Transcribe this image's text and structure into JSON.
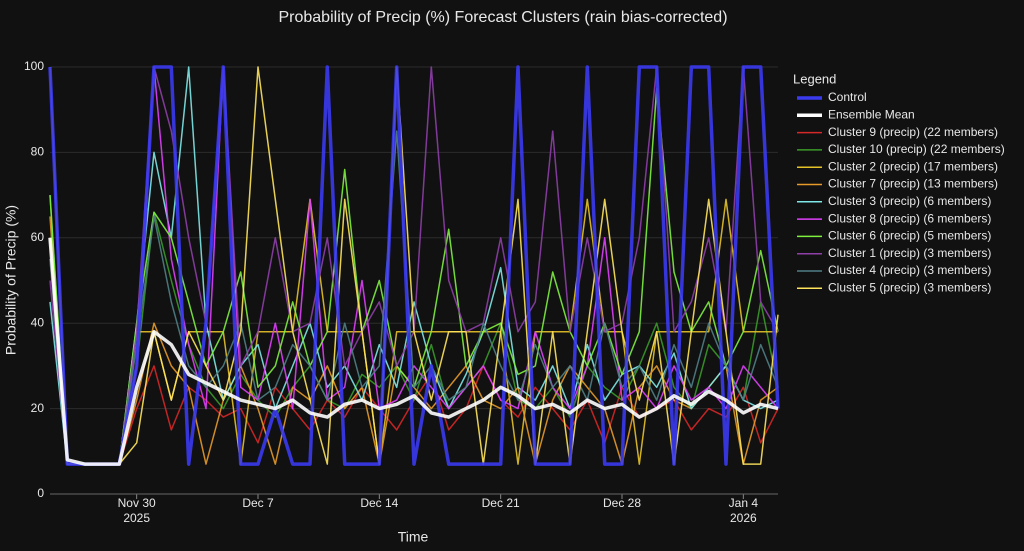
{
  "chart_data": {
    "type": "line",
    "title": "Probability of Precip (%) Forecast Clusters (rain bias-corrected)",
    "xlabel": "Time",
    "ylabel": "Probability of Precip (%)",
    "legend_title": "Legend",
    "legend": "right",
    "grid": true,
    "ylim": [
      0,
      100
    ],
    "yticks": [
      0,
      20,
      40,
      60,
      80,
      100
    ],
    "xlim": [
      "2025-11-25",
      "2026-01-06"
    ],
    "xticks": [
      {
        "value": "2025-11-30",
        "label": [
          "Nov 30",
          "2025"
        ]
      },
      {
        "value": "2025-12-07",
        "label": "Dec 7"
      },
      {
        "value": "2025-12-14",
        "label": "Dec 14"
      },
      {
        "value": "2025-12-21",
        "label": "Dec 21"
      },
      {
        "value": "2025-12-28",
        "label": "Dec 28"
      },
      {
        "value": "2026-01-04",
        "label": [
          "Jan 4",
          "2026"
        ]
      }
    ],
    "x": [
      "2025-11-25",
      "2025-11-26",
      "2025-11-27",
      "2025-11-28",
      "2025-11-29",
      "2025-11-30",
      "2025-12-01",
      "2025-12-02",
      "2025-12-03",
      "2025-12-04",
      "2025-12-05",
      "2025-12-06",
      "2025-12-07",
      "2025-12-08",
      "2025-12-09",
      "2025-12-10",
      "2025-12-11",
      "2025-12-12",
      "2025-12-13",
      "2025-12-14",
      "2025-12-15",
      "2025-12-16",
      "2025-12-17",
      "2025-12-18",
      "2025-12-19",
      "2025-12-20",
      "2025-12-21",
      "2025-12-22",
      "2025-12-23",
      "2025-12-24",
      "2025-12-25",
      "2025-12-26",
      "2025-12-27",
      "2025-12-28",
      "2025-12-29",
      "2025-12-30",
      "2025-12-31",
      "2026-01-01",
      "2026-01-02",
      "2026-01-03",
      "2026-01-04",
      "2026-01-05",
      "2026-01-06"
    ],
    "series": [
      {
        "name": "Control",
        "color": "#3a3af0",
        "width": 3.5,
        "values": [
          100,
          7,
          7,
          7,
          7,
          30,
          100,
          100,
          7,
          40,
          100,
          7,
          7,
          20,
          7,
          7,
          100,
          7,
          7,
          7,
          100,
          7,
          30,
          7,
          7,
          7,
          7,
          100,
          7,
          7,
          7,
          100,
          7,
          7,
          100,
          100,
          7,
          100,
          100,
          7,
          100,
          100,
          20
        ]
      },
      {
        "name": "Ensemble Mean",
        "color": "#ffffff",
        "width": 3.5,
        "values": [
          60,
          8,
          7,
          7,
          7,
          25,
          38,
          35,
          28,
          26,
          24,
          22,
          21,
          20,
          22,
          19,
          18,
          21,
          22,
          20,
          21,
          23,
          19,
          18,
          20,
          22,
          25,
          23,
          20,
          21,
          19,
          22,
          20,
          21,
          18,
          20,
          23,
          21,
          24,
          22,
          19,
          21,
          20
        ]
      },
      {
        "name": "Cluster 9 (precip) (22 members)",
        "color": "#d62728",
        "width": 1.5,
        "values": [
          55,
          7,
          7,
          7,
          7,
          20,
          30,
          15,
          25,
          22,
          18,
          20,
          12,
          25,
          20,
          15,
          22,
          18,
          25,
          20,
          15,
          22,
          28,
          15,
          20,
          30,
          22,
          18,
          25,
          20,
          15,
          22,
          12,
          25,
          18,
          20,
          22,
          15,
          20,
          18,
          25,
          12,
          20
        ]
      },
      {
        "name": "Cluster 10 (precip) (22 members)",
        "color": "#3a9a2a",
        "width": 1.5,
        "values": [
          70,
          7,
          7,
          7,
          7,
          30,
          66,
          50,
          35,
          25,
          20,
          28,
          22,
          18,
          25,
          30,
          22,
          20,
          28,
          25,
          30,
          22,
          35,
          20,
          25,
          30,
          40,
          22,
          20,
          25,
          18,
          30,
          25,
          22,
          30,
          40,
          25,
          20,
          35,
          30,
          22,
          45,
          25
        ]
      },
      {
        "name": "Cluster 2 (precip) (17 members)",
        "color": "#e6c229",
        "width": 1.5,
        "values": [
          100,
          7,
          7,
          7,
          7,
          38,
          38,
          22,
          38,
          38,
          38,
          7,
          38,
          38,
          38,
          69,
          38,
          38,
          38,
          7,
          38,
          38,
          38,
          38,
          38,
          38,
          38,
          7,
          38,
          38,
          38,
          69,
          38,
          38,
          7,
          38,
          38,
          38,
          38,
          69,
          38,
          38,
          38
        ]
      },
      {
        "name": "Cluster 7 (precip) (13 members)",
        "color": "#e59a2a",
        "width": 1.5,
        "values": [
          65,
          7,
          7,
          7,
          7,
          22,
          40,
          30,
          25,
          7,
          22,
          30,
          20,
          7,
          25,
          22,
          30,
          20,
          25,
          7,
          30,
          25,
          20,
          25,
          30,
          22,
          20,
          25,
          7,
          22,
          30,
          25,
          20,
          7,
          25,
          30,
          22,
          20,
          25,
          30,
          7,
          22,
          25
        ]
      },
      {
        "name": "Cluster 3 (precip) (6 members)",
        "color": "#7fe8e8",
        "width": 1.5,
        "values": [
          45,
          7,
          7,
          7,
          7,
          40,
          80,
          60,
          100,
          40,
          22,
          30,
          35,
          20,
          30,
          40,
          25,
          30,
          22,
          35,
          25,
          45,
          30,
          20,
          28,
          38,
          53,
          25,
          22,
          30,
          20,
          35,
          22,
          28,
          30,
          25,
          33,
          20,
          25,
          30,
          22,
          20,
          22
        ]
      },
      {
        "name": "Cluster 8 (precip) (6 members)",
        "color": "#e040fb",
        "width": 1.5,
        "values": [
          60,
          7,
          7,
          7,
          7,
          30,
          100,
          55,
          35,
          20,
          100,
          25,
          22,
          40,
          20,
          69,
          22,
          25,
          50,
          20,
          22,
          30,
          25,
          20,
          25,
          30,
          22,
          20,
          38,
          25,
          20,
          30,
          60,
          22,
          25,
          20,
          30,
          22,
          25,
          20,
          30,
          25,
          20
        ]
      },
      {
        "name": "Cluster 6 (precip) (5 members)",
        "color": "#80f040",
        "width": 1.5,
        "values": [
          70,
          7,
          7,
          7,
          7,
          40,
          66,
          60,
          45,
          30,
          38,
          52,
          25,
          30,
          45,
          30,
          38,
          76,
          38,
          50,
          30,
          25,
          38,
          62,
          30,
          38,
          40,
          28,
          30,
          52,
          38,
          30,
          40,
          28,
          38,
          95,
          52,
          38,
          45,
          30,
          38,
          57,
          38
        ]
      },
      {
        "name": "Cluster 1 (precip) (3 members)",
        "color": "#8e3fa8",
        "width": 1.5,
        "values": [
          50,
          7,
          7,
          7,
          7,
          38,
          100,
          85,
          60,
          40,
          100,
          30,
          38,
          60,
          38,
          40,
          60,
          30,
          38,
          45,
          30,
          38,
          100,
          50,
          38,
          40,
          60,
          38,
          45,
          85,
          38,
          60,
          38,
          40,
          60,
          100,
          38,
          45,
          60,
          38,
          100,
          45,
          38
        ]
      },
      {
        "name": "Cluster 4 (precip) (3 members)",
        "color": "#4f7f86",
        "width": 1.5,
        "values": [
          55,
          7,
          7,
          7,
          7,
          35,
          65,
          45,
          30,
          25,
          30,
          40,
          22,
          25,
          35,
          30,
          22,
          40,
          25,
          30,
          85,
          25,
          30,
          22,
          25,
          40,
          30,
          22,
          35,
          25,
          30,
          22,
          40,
          25,
          30,
          22,
          35,
          25,
          40,
          30,
          22,
          35,
          25
        ]
      },
      {
        "name": "Cluster 5 (precip) (3 members)",
        "color": "#ffe45c",
        "width": 1.5,
        "values": [
          60,
          7,
          7,
          7,
          7,
          12,
          38,
          22,
          38,
          30,
          22,
          38,
          100,
          69,
          38,
          22,
          7,
          69,
          38,
          7,
          100,
          38,
          22,
          38,
          38,
          7,
          38,
          69,
          7,
          38,
          7,
          38,
          69,
          38,
          22,
          38,
          7,
          38,
          69,
          38,
          7,
          7,
          42
        ]
      }
    ]
  }
}
